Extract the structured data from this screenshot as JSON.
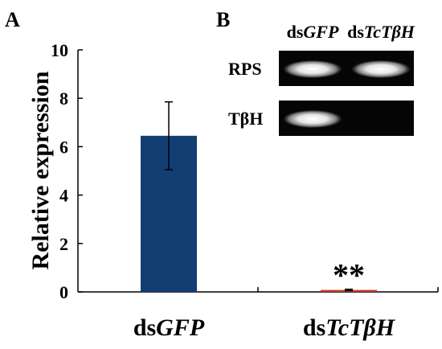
{
  "chart_data": {
    "type": "bar",
    "panel_a_label": "A",
    "panel_b_label": "B",
    "ylabel": "Relative expression",
    "ylim": [
      0,
      10
    ],
    "yticks": [
      "0",
      "2",
      "4",
      "6",
      "8",
      "10"
    ],
    "categories": [
      {
        "prefix": "ds",
        "italic": "GFP"
      },
      {
        "prefix": "ds",
        "italic": "TcTβH"
      }
    ],
    "values": [
      6.45,
      0.08
    ],
    "errors": [
      1.4,
      0.03
    ],
    "bar_colors": [
      "#123f73",
      "#c0392b"
    ],
    "significance": [
      "",
      "**"
    ],
    "grid": false,
    "gel": {
      "columns": [
        {
          "prefix": "ds",
          "italic": "GFP"
        },
        {
          "prefix": "ds",
          "italic": "TcTβH"
        }
      ],
      "rows": [
        {
          "label": "RPS",
          "bands": [
            1,
            1
          ]
        },
        {
          "label": "TβH",
          "bands": [
            1,
            0
          ]
        }
      ]
    }
  }
}
